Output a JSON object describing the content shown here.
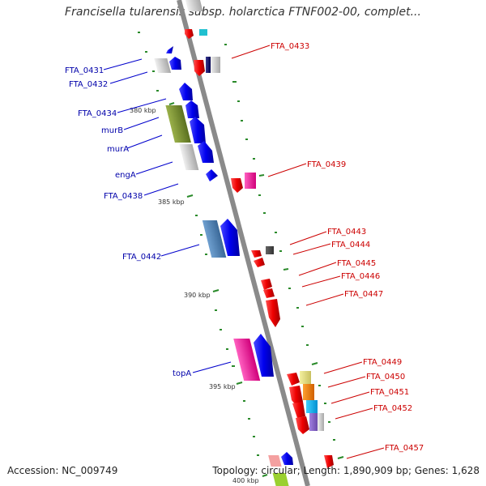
{
  "title": "Francisella tularensis subsp. holarctica FTNF002-00, complet...",
  "footer": {
    "accession": "Accession: NC_009749",
    "topology": "Topology: circular; Length: 1,890,909 bp; Genes: 1,628"
  },
  "colors": {
    "backbone": "#8a8a8a",
    "forward_strand": "#0000ee",
    "reverse_strand": "#ee0000",
    "forward_label": "#0000aa",
    "reverse_label": "#cc0000",
    "tick": "#2a8a2a"
  },
  "kbp_labels": [
    "380 kbp",
    "385 kbp",
    "390 kbp",
    "395 kbp",
    "400 kbp"
  ],
  "gene_labels_left": [
    "FTA_0431",
    "FTA_0432",
    "FTA_0434",
    "murB",
    "murA",
    "engA",
    "FTA_0438",
    "FTA_0442",
    "topA"
  ],
  "gene_labels_right": [
    "FTA_0433",
    "FTA_0439",
    "FTA_0443",
    "FTA_0444",
    "FTA_0445",
    "FTA_0446",
    "FTA_0447",
    "FTA_0449",
    "FTA_0450",
    "FTA_0451",
    "FTA_0452",
    "FTA_0457"
  ]
}
